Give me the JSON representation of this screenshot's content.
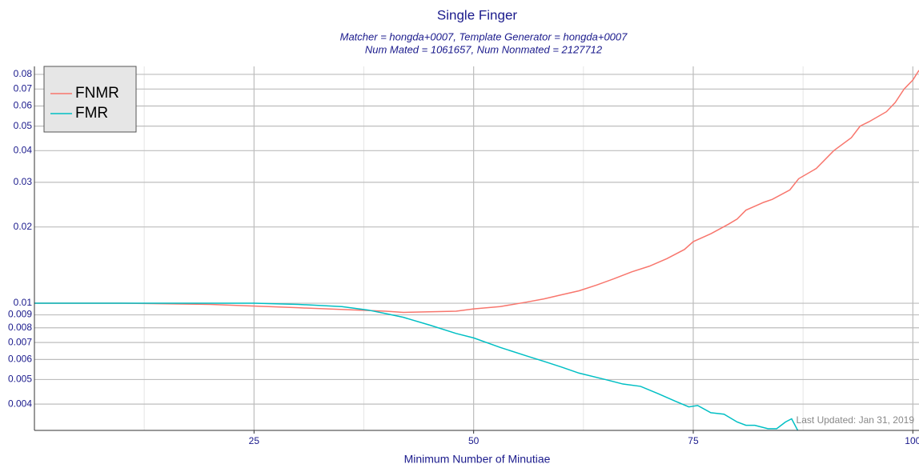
{
  "chart_data": {
    "type": "line",
    "title": "Single Finger",
    "subtitle": [
      "Matcher = hongda+0007, Template Generator = hongda+0007",
      "Num Mated = 1061657, Num Nonmated = 2127712"
    ],
    "x_label": "Minimum Number of Minutiae",
    "annotation": "Last Updated: Jan 31, 2019",
    "log_y": true,
    "grid": true,
    "legend": "top-left",
    "xlim": [
      0,
      100.7
    ],
    "ylim": [
      0.00315,
      0.086
    ],
    "xticks": [
      25,
      50,
      75,
      100
    ],
    "x_minor_ticks": [
      12.5,
      37.5,
      62.5,
      87.5
    ],
    "yticks": [
      0.004,
      0.005,
      0.006,
      0.007,
      0.008,
      0.009,
      0.01,
      0.02,
      0.03,
      0.04,
      0.05,
      0.06,
      0.07,
      0.08
    ],
    "series": [
      {
        "name": "FNMR",
        "color": "#f8766d",
        "x": [
          0,
          10,
          20,
          30,
          40,
          42,
          48,
          50,
          53,
          56,
          58,
          60,
          62,
          64,
          66,
          68,
          70,
          72,
          74,
          75,
          77,
          79,
          80,
          81,
          83,
          84,
          86,
          87,
          89,
          91,
          93,
          94,
          95,
          97,
          98,
          99,
          100,
          100.7
        ],
        "values": [
          0.01,
          0.01,
          0.0099,
          0.0096,
          0.0093,
          0.0092,
          0.0093,
          0.0095,
          0.0097,
          0.0101,
          0.0104,
          0.0108,
          0.0112,
          0.0118,
          0.0125,
          0.0133,
          0.014,
          0.015,
          0.0163,
          0.0175,
          0.0188,
          0.0205,
          0.0215,
          0.0233,
          0.025,
          0.0257,
          0.028,
          0.031,
          0.034,
          0.04,
          0.045,
          0.05,
          0.052,
          0.057,
          0.062,
          0.07,
          0.076,
          0.083
        ]
      },
      {
        "name": "FMR",
        "color": "#00bfc4",
        "x": [
          0,
          25,
          30,
          35,
          38,
          40,
          42,
          45,
          48,
          50,
          53,
          56,
          58,
          60,
          62,
          65,
          67,
          69,
          71,
          73,
          74.5,
          75.5,
          77,
          78.5,
          80,
          81,
          82,
          83.5,
          84.5,
          85.5,
          86.2,
          87
        ],
        "values": [
          0.01,
          0.01,
          0.0099,
          0.0097,
          0.0094,
          0.0091,
          0.0088,
          0.0082,
          0.0076,
          0.0073,
          0.0067,
          0.0062,
          0.0059,
          0.0056,
          0.0053,
          0.005,
          0.0048,
          0.0047,
          0.0044,
          0.0041,
          0.0039,
          0.00395,
          0.0037,
          0.00365,
          0.0034,
          0.0033,
          0.0033,
          0.0032,
          0.0032,
          0.0034,
          0.0035,
          0.0031
        ]
      }
    ]
  }
}
